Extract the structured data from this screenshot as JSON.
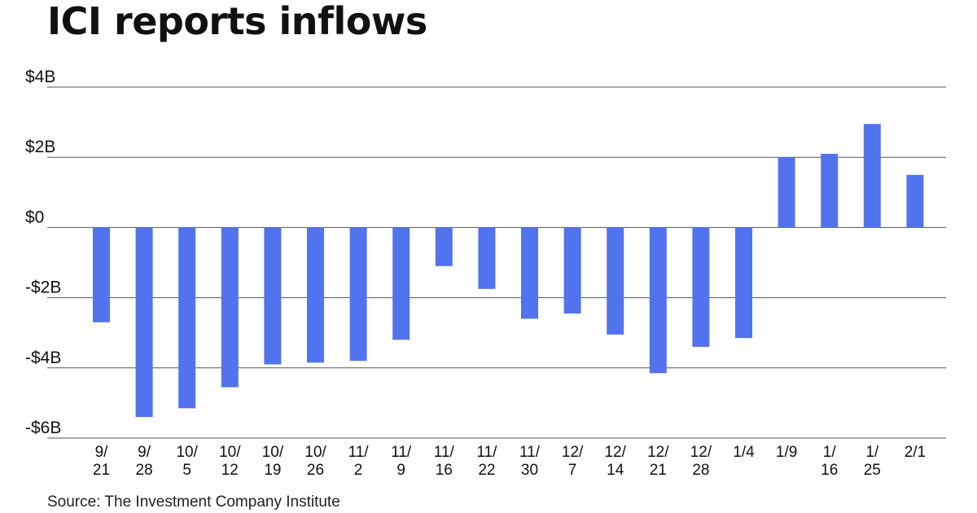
{
  "title": "ICI reports inflows",
  "source": "Source: The Investment Company Institute",
  "colors": {
    "bar": "#5273EE",
    "grid": "#555555",
    "text": "#111111"
  },
  "chart_data": {
    "type": "bar",
    "title": "ICI reports inflows",
    "xlabel": "",
    "ylabel": "",
    "ylim": [
      -6,
      4
    ],
    "yticks": [
      4,
      2,
      0,
      -2,
      -4,
      -6
    ],
    "ytick_labels": [
      "$4B",
      "$2B",
      "$0",
      "-$2B",
      "-$4B",
      "-$6B"
    ],
    "grid": true,
    "categories": [
      [
        "9/",
        "21"
      ],
      [
        "9/",
        "28"
      ],
      [
        "10/",
        "5"
      ],
      [
        "10/",
        "12"
      ],
      [
        "10/",
        "19"
      ],
      [
        "10/",
        "26"
      ],
      [
        "11/",
        "2"
      ],
      [
        "11/",
        "9"
      ],
      [
        "11/",
        "16"
      ],
      [
        "11/",
        "22"
      ],
      [
        "11/",
        "30"
      ],
      [
        "12/",
        "7"
      ],
      [
        "12/",
        "14"
      ],
      [
        "12/",
        "21"
      ],
      [
        "12/",
        "28"
      ],
      [
        "1/4"
      ],
      [
        "1/9"
      ],
      [
        "1/",
        "16"
      ],
      [
        "1/",
        "25"
      ],
      [
        "2/1"
      ]
    ],
    "values": [
      -2.7,
      -5.4,
      -5.15,
      -4.55,
      -3.9,
      -3.85,
      -3.8,
      -3.2,
      -1.1,
      -1.75,
      -2.6,
      -2.45,
      -3.05,
      -4.15,
      -3.4,
      -3.15,
      2.0,
      2.1,
      2.95,
      1.5
    ]
  }
}
